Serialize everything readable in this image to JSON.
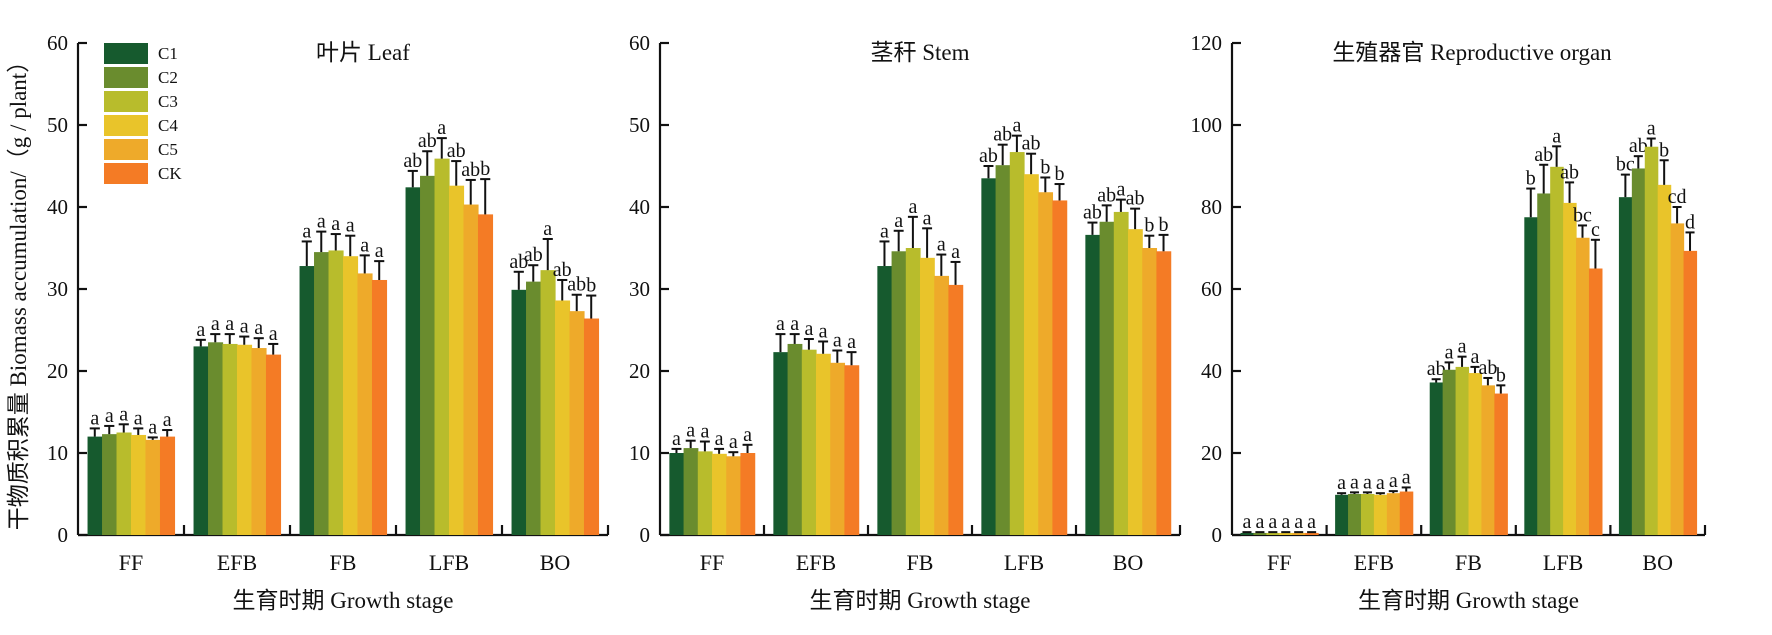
{
  "chart_data": {
    "type": "bar",
    "ylabel": "干物质积累量 Biomass accumulation/（g / plant）",
    "xlabel": "生育时期 Growth stage",
    "categories": [
      "FF",
      "EFB",
      "FB",
      "LFB",
      "BO"
    ],
    "legend": {
      "placement": "top-left of first panel",
      "entries": [
        {
          "name": "C1",
          "color": "#165a2e"
        },
        {
          "name": "C2",
          "color": "#6a8c2e"
        },
        {
          "name": "C3",
          "color": "#b8bc2c"
        },
        {
          "name": "C4",
          "color": "#e9c42a"
        },
        {
          "name": "C5",
          "color": "#eeaa2a"
        },
        {
          "name": "CK",
          "color": "#f47b25"
        }
      ]
    },
    "panels": [
      {
        "title": "叶片 Leaf",
        "ylim": [
          0,
          60
        ],
        "yticks": [
          0,
          10,
          20,
          30,
          40,
          50,
          60
        ],
        "series": [
          {
            "name": "C1",
            "values": [
              12.0,
              23.0,
              32.8,
              42.4,
              29.9
            ],
            "errors": [
              1.0,
              0.8,
              3.0,
              2.0,
              2.2
            ],
            "letters": [
              "a",
              "a",
              "a",
              "ab",
              "ab"
            ]
          },
          {
            "name": "C2",
            "values": [
              12.3,
              23.5,
              34.5,
              43.8,
              30.9
            ],
            "errors": [
              1.0,
              1.0,
              2.5,
              3.0,
              2.0
            ],
            "letters": [
              "a",
              "a",
              "a",
              "ab",
              "ab"
            ]
          },
          {
            "name": "C3",
            "values": [
              12.5,
              23.3,
              34.7,
              45.9,
              32.3
            ],
            "errors": [
              1.0,
              1.2,
              2.0,
              2.5,
              3.8
            ],
            "letters": [
              "a",
              "a",
              "a",
              "a",
              "a"
            ]
          },
          {
            "name": "C4",
            "values": [
              12.2,
              23.2,
              34.0,
              42.6,
              28.6
            ],
            "errors": [
              0.8,
              1.0,
              2.5,
              3.0,
              2.5
            ],
            "letters": [
              "a",
              "a",
              "a",
              "ab",
              "ab"
            ]
          },
          {
            "name": "C5",
            "values": [
              11.6,
              22.8,
              31.9,
              40.3,
              27.3
            ],
            "errors": [
              0.3,
              1.2,
              2.2,
              3.0,
              2.0
            ],
            "letters": [
              "a",
              "a",
              "a",
              "ab",
              "ab"
            ]
          },
          {
            "name": "CK",
            "values": [
              12.0,
              22.0,
              31.1,
              39.1,
              26.4
            ],
            "errors": [
              0.8,
              1.3,
              2.3,
              4.3,
              2.8
            ],
            "letters": [
              "a",
              "a",
              "a",
              "b",
              "b"
            ]
          }
        ]
      },
      {
        "title": "茎秆 Stem",
        "ylim": [
          0,
          60
        ],
        "yticks": [
          0,
          10,
          20,
          30,
          40,
          50,
          60
        ],
        "series": [
          {
            "name": "C1",
            "values": [
              10.0,
              22.3,
              32.8,
              43.5,
              36.6
            ],
            "errors": [
              0.5,
              2.2,
              3.0,
              1.5,
              1.5
            ],
            "letters": [
              "a",
              "a",
              "a",
              "ab",
              "ab"
            ]
          },
          {
            "name": "C2",
            "values": [
              10.6,
              23.3,
              34.6,
              45.1,
              38.2
            ],
            "errors": [
              0.9,
              1.2,
              2.5,
              2.5,
              2.0
            ],
            "letters": [
              "a",
              "a",
              "a",
              "ab",
              "ab"
            ]
          },
          {
            "name": "C3",
            "values": [
              10.2,
              22.6,
              35.0,
              46.7,
              39.4
            ],
            "errors": [
              1.2,
              1.3,
              3.8,
              2.0,
              1.5
            ],
            "letters": [
              "a",
              "a",
              "a",
              "a",
              "a"
            ]
          },
          {
            "name": "C4",
            "values": [
              9.9,
              22.1,
              33.8,
              44.0,
              37.3
            ],
            "errors": [
              0.6,
              1.5,
              3.6,
              2.5,
              2.5
            ],
            "letters": [
              "a",
              "a",
              "a",
              "ab",
              "ab"
            ]
          },
          {
            "name": "C5",
            "values": [
              9.6,
              21.0,
              31.6,
              41.8,
              35.0
            ],
            "errors": [
              0.5,
              1.5,
              2.6,
              1.8,
              1.5
            ],
            "letters": [
              "a",
              "a",
              "a",
              "b",
              "b"
            ]
          },
          {
            "name": "CK",
            "values": [
              10.0,
              20.7,
              30.5,
              40.8,
              34.6
            ],
            "errors": [
              1.0,
              1.6,
              2.8,
              2.0,
              2.0
            ],
            "letters": [
              "a",
              "a",
              "a",
              "b",
              "b"
            ]
          }
        ]
      },
      {
        "title": "生殖器官 Reproductive organ",
        "ylim": [
          0,
          120
        ],
        "yticks": [
          0,
          20,
          40,
          60,
          80,
          100,
          120
        ],
        "series": [
          {
            "name": "C1",
            "values": [
              0.5,
              9.8,
              37.2,
              77.5,
              82.4
            ],
            "errors": [
              0.2,
              0.4,
              0.8,
              7.0,
              5.5
            ],
            "letters": [
              "a",
              "a",
              "ab",
              "b",
              "bc"
            ]
          },
          {
            "name": "C2",
            "values": [
              0.5,
              10.0,
              40.3,
              83.3,
              89.4
            ],
            "errors": [
              0.2,
              0.4,
              1.8,
              7.0,
              3.0
            ],
            "letters": [
              "a",
              "a",
              "a",
              "ab",
              "ab"
            ]
          },
          {
            "name": "C3",
            "values": [
              0.5,
              10.0,
              41.0,
              89.8,
              94.7
            ],
            "errors": [
              0.2,
              0.4,
              2.5,
              5.0,
              2.0
            ],
            "letters": [
              "a",
              "a",
              "a",
              "a",
              "a"
            ]
          },
          {
            "name": "C4",
            "values": [
              0.5,
              9.8,
              39.5,
              81.0,
              85.4
            ],
            "errors": [
              0.2,
              0.4,
              1.5,
              5.0,
              6.0
            ],
            "letters": [
              "a",
              "a",
              "a",
              "ab",
              "b"
            ]
          },
          {
            "name": "C5",
            "values": [
              0.5,
              10.2,
              36.5,
              72.5,
              76.0
            ],
            "errors": [
              0.2,
              0.5,
              1.8,
              3.0,
              4.0
            ],
            "letters": [
              "a",
              "a",
              "ab",
              "bc",
              "cd"
            ]
          },
          {
            "name": "CK",
            "values": [
              0.5,
              10.6,
              34.5,
              65.0,
              69.3
            ],
            "errors": [
              0.2,
              1.0,
              2.0,
              7.0,
              4.5
            ],
            "letters": [
              "a",
              "a",
              "b",
              "c",
              "d"
            ]
          }
        ]
      }
    ]
  }
}
